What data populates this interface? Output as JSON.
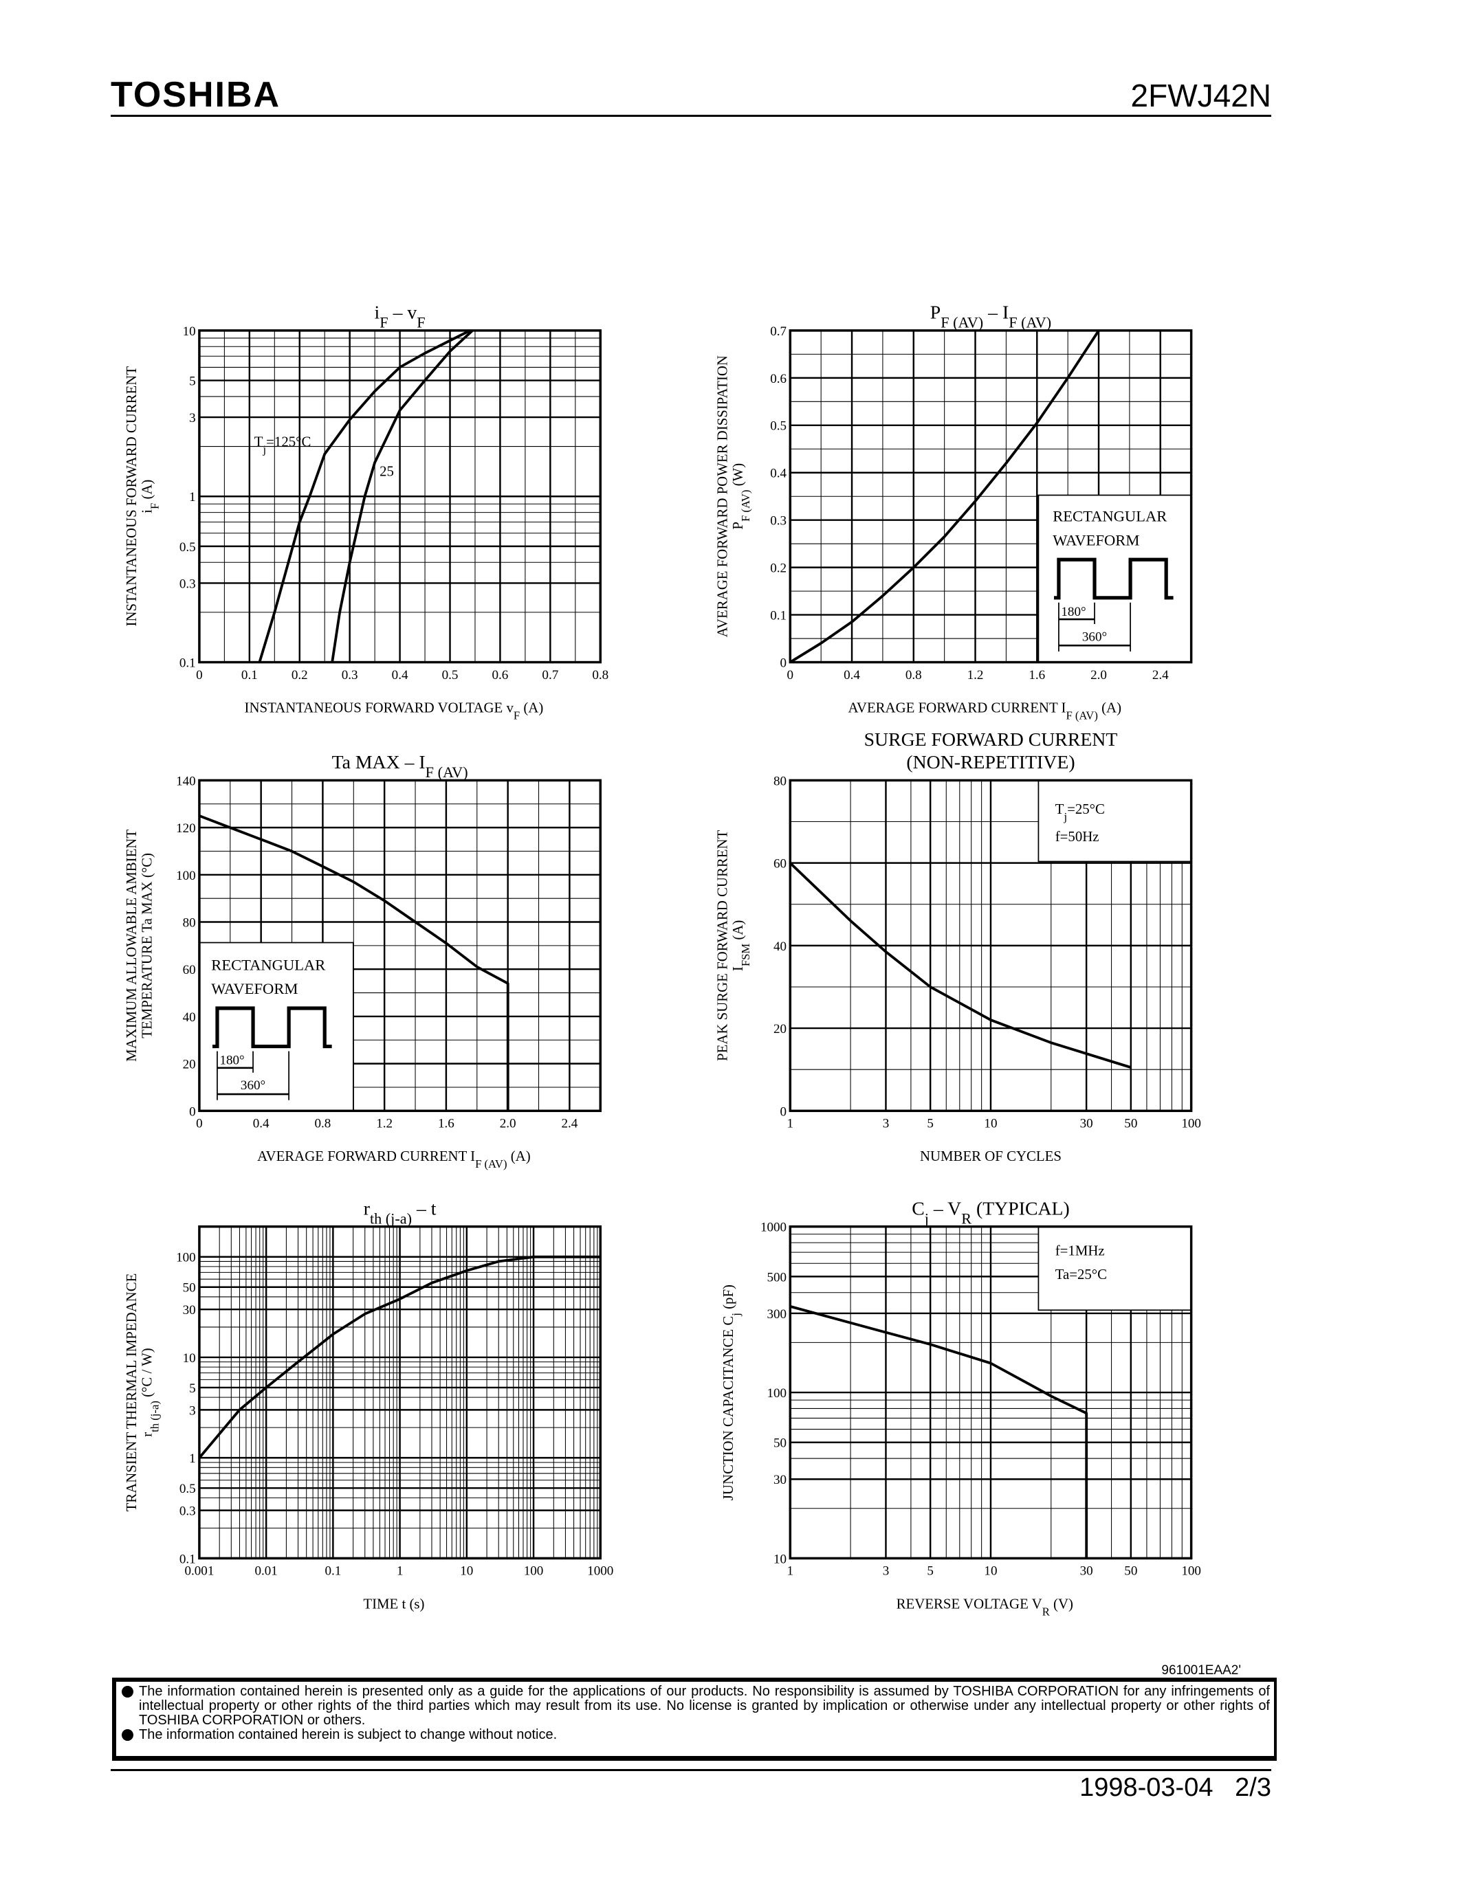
{
  "header": {
    "logo": "TOSHIBA",
    "part_number": "2FWJ42N"
  },
  "footer": {
    "doc_code": "961001EAA2'",
    "disclaimer": [
      "The information contained herein is presented only as a guide for the applications of our products. No responsibility is assumed by TOSHIBA CORPORATION for any infringements of intellectual property or other rights of the third parties which may result from its use. No license is granted by implication or otherwise under any intellectual property or other rights of TOSHIBA CORPORATION or others.",
      "The information contained herein is subject to change without notice."
    ],
    "date": "1998-03-04",
    "page": "2/3"
  },
  "chart_data": [
    {
      "type": "line",
      "title": [
        [
          "i",
          ""
        ],
        [
          "F",
          "sub"
        ],
        [
          "  –  v",
          ""
        ],
        [
          "F",
          "sub"
        ]
      ],
      "xlabel": [
        [
          "INSTANTANEOUS FORWARD VOLTAGE   v",
          ""
        ],
        [
          "F",
          "sub"
        ],
        [
          "   (A)",
          ""
        ]
      ],
      "ylabel": [
        [
          [
            "INSTANTANEOUS FORWARD CURRENT",
            ""
          ]
        ],
        [
          [
            "i",
            ""
          ],
          [
            "F",
            "sub"
          ],
          [
            "   (A)",
            ""
          ]
        ]
      ],
      "x_scale": "linear",
      "xlim": [
        0,
        0.8
      ],
      "x_ticks": [
        "0",
        "0.1",
        "0.2",
        "0.3",
        "0.4",
        "0.5",
        "0.6",
        "0.7",
        "0.8"
      ],
      "y_scale": "log",
      "ylim": [
        0.1,
        10
      ],
      "y_ticks": [
        "0.1",
        "0.3",
        "0.5",
        "1",
        "3",
        "5",
        "10"
      ],
      "grid": true,
      "series": [
        {
          "name": "Tj=125°C",
          "points": [
            [
              0.12,
              0.1
            ],
            [
              0.15,
              0.2
            ],
            [
              0.2,
              0.7
            ],
            [
              0.22,
              1
            ],
            [
              0.25,
              1.8
            ],
            [
              0.3,
              2.9
            ],
            [
              0.35,
              4.3
            ],
            [
              0.4,
              6
            ],
            [
              0.45,
              7.3
            ],
            [
              0.5,
              8.7
            ],
            [
              0.54,
              10
            ]
          ]
        },
        {
          "name": "25",
          "points": [
            [
              0.265,
              0.1
            ],
            [
              0.28,
              0.2
            ],
            [
              0.3,
              0.4
            ],
            [
              0.33,
              1
            ],
            [
              0.35,
              1.6
            ],
            [
              0.4,
              3.3
            ],
            [
              0.45,
              5
            ],
            [
              0.5,
              7.5
            ],
            [
              0.545,
              10
            ]
          ]
        }
      ],
      "annotations": [
        [
          [
            "T",
            ""
          ],
          [
            "j",
            "sub"
          ],
          [
            "=125°C",
            ""
          ]
        ],
        [
          [
            "25",
            ""
          ]
        ]
      ]
    },
    {
      "type": "line",
      "title": [
        [
          "P",
          ""
        ],
        [
          "F (AV)",
          "sub"
        ],
        [
          "  –  I",
          ""
        ],
        [
          "F (AV)",
          "sub"
        ]
      ],
      "xlabel": [
        [
          "AVERAGE FORWARD CURRENT   I",
          ""
        ],
        [
          "F (AV)",
          "sub"
        ],
        [
          "   (A)",
          ""
        ]
      ],
      "ylabel": [
        [
          [
            "AVERAGE FORWARD POWER DISSIPATION",
            ""
          ]
        ],
        [
          [
            "P",
            ""
          ],
          [
            "F (AV)",
            "sub"
          ],
          [
            "   (W)",
            ""
          ]
        ]
      ],
      "x_scale": "linear",
      "xlim": [
        0,
        2.6
      ],
      "x_ticks": [
        "0",
        "0.4",
        "0.8",
        "1.2",
        "1.6",
        "2.0",
        "2.4"
      ],
      "y_scale": "linear",
      "ylim": [
        0,
        0.7
      ],
      "y_ticks": [
        "0",
        "0.1",
        "0.2",
        "0.3",
        "0.4",
        "0.5",
        "0.6",
        "0.7"
      ],
      "grid": true,
      "series": [
        {
          "points": [
            [
              0,
              0
            ],
            [
              0.2,
              0.04
            ],
            [
              0.4,
              0.085
            ],
            [
              0.6,
              0.14
            ],
            [
              0.8,
              0.2
            ],
            [
              1.0,
              0.265
            ],
            [
              1.2,
              0.34
            ],
            [
              1.4,
              0.42
            ],
            [
              1.6,
              0.505
            ],
            [
              1.8,
              0.6
            ],
            [
              2.0,
              0.7
            ]
          ]
        }
      ],
      "inset": {
        "lines": [
          "RECTANGULAR",
          "WAVEFORM"
        ],
        "angles": [
          "180°",
          "360°"
        ]
      }
    },
    {
      "type": "line",
      "title": [
        [
          "Ta MAX  –  I",
          ""
        ],
        [
          "F (AV)",
          "sub"
        ]
      ],
      "xlabel": [
        [
          "AVERAGE FORWARD CURRENT   I",
          ""
        ],
        [
          "F (AV)",
          "sub"
        ],
        [
          "   (A)",
          ""
        ]
      ],
      "ylabel": [
        [
          [
            "MAXIMUM ALLOWABLE AMBIENT",
            ""
          ]
        ],
        [
          [
            "TEMPERATURE   Ta MAX   (°C)",
            ""
          ]
        ]
      ],
      "x_scale": "linear",
      "xlim": [
        0,
        2.6
      ],
      "x_ticks": [
        "0",
        "0.4",
        "0.8",
        "1.2",
        "1.6",
        "2.0",
        "2.4"
      ],
      "y_scale": "linear",
      "ylim": [
        0,
        140
      ],
      "y_ticks": [
        "0",
        "20",
        "40",
        "60",
        "80",
        "100",
        "120",
        "140"
      ],
      "grid": true,
      "series": [
        {
          "points": [
            [
              0,
              125
            ],
            [
              0.2,
              120
            ],
            [
              0.4,
              115
            ],
            [
              0.6,
              110
            ],
            [
              0.8,
              103.5
            ],
            [
              1.0,
              97
            ],
            [
              1.2,
              89
            ],
            [
              1.4,
              80
            ],
            [
              1.6,
              71
            ],
            [
              1.8,
              61
            ],
            [
              2.0,
              54
            ],
            [
              2.0,
              0
            ]
          ]
        }
      ],
      "inset": {
        "lines": [
          "RECTANGULAR",
          "WAVEFORM"
        ],
        "angles": [
          "180°",
          "360°"
        ]
      }
    },
    {
      "type": "line",
      "title_lines": [
        "SURGE FORWARD CURRENT",
        "(NON-REPETITIVE)"
      ],
      "xlabel": [
        [
          "NUMBER OF CYCLES",
          ""
        ]
      ],
      "ylabel": [
        [
          [
            "PEAK SURGE FORWARD CURRENT",
            ""
          ]
        ],
        [
          [
            "I",
            ""
          ],
          [
            "FSM",
            "sub"
          ],
          [
            "   (A)",
            ""
          ]
        ]
      ],
      "x_scale": "log",
      "xlim": [
        1,
        100
      ],
      "x_ticks": [
        "1",
        "3",
        "5",
        "10",
        "30",
        "50",
        "100"
      ],
      "y_scale": "linear",
      "ylim": [
        0,
        80
      ],
      "y_ticks": [
        "0",
        "20",
        "40",
        "60",
        "80"
      ],
      "grid": true,
      "series": [
        {
          "points": [
            [
              1,
              60
            ],
            [
              2,
              46
            ],
            [
              3,
              38.5
            ],
            [
              5,
              30
            ],
            [
              10,
              22
            ],
            [
              20,
              16.5
            ],
            [
              50,
              10.5
            ]
          ]
        }
      ],
      "annotations": [
        [
          [
            "T",
            ""
          ],
          [
            "j",
            "sub"
          ],
          [
            "=25°C",
            ""
          ]
        ],
        [
          [
            "f=50Hz",
            ""
          ]
        ]
      ]
    },
    {
      "type": "line",
      "title": [
        [
          "r",
          ""
        ],
        [
          "th (j-a)",
          "sub"
        ],
        [
          "  –  t",
          ""
        ]
      ],
      "xlabel": [
        [
          "TIME    t    (s)",
          ""
        ]
      ],
      "ylabel": [
        [
          [
            "TRANSIENT THERMAL IMPEDANCE",
            ""
          ]
        ],
        [
          [
            "r",
            ""
          ],
          [
            "th (j-a)",
            "sub"
          ],
          [
            "   (°C / W)",
            ""
          ]
        ]
      ],
      "x_scale": "log",
      "xlim": [
        0.001,
        1000
      ],
      "x_ticks": [
        "0.001",
        "0.01",
        "0.1",
        "1",
        "10",
        "100",
        "1000"
      ],
      "y_scale": "log",
      "ylim": [
        0.1,
        200
      ],
      "y_ticks": [
        "0.1",
        "0.3",
        "0.5",
        "1",
        "3",
        "5",
        "10",
        "30",
        "50",
        "100"
      ],
      "grid": true,
      "series": [
        {
          "points": [
            [
              0.001,
              1
            ],
            [
              0.004,
              3
            ],
            [
              0.01,
              5
            ],
            [
              0.03,
              9
            ],
            [
              0.1,
              17
            ],
            [
              0.3,
              27
            ],
            [
              1,
              38
            ],
            [
              3,
              55
            ],
            [
              10,
              73
            ],
            [
              30,
              90
            ],
            [
              100,
              100
            ],
            [
              1000,
              100
            ]
          ]
        }
      ]
    },
    {
      "type": "line",
      "title": [
        [
          "C",
          ""
        ],
        [
          "j",
          "sub"
        ],
        [
          "  –  V",
          ""
        ],
        [
          "R",
          "sub"
        ],
        [
          "          (TYPICAL)",
          ""
        ]
      ],
      "xlabel": [
        [
          "REVERSE VOLTAGE   V",
          ""
        ],
        [
          "R",
          "sub"
        ],
        [
          "   (V)",
          ""
        ]
      ],
      "ylabel": [
        [
          [
            "JUNCTION CAPACITANCE    C",
            ""
          ],
          [
            "j",
            "sub"
          ],
          [
            "    (pF)",
            ""
          ]
        ]
      ],
      "x_scale": "log",
      "xlim": [
        1,
        100
      ],
      "x_ticks": [
        "1",
        "3",
        "5",
        "10",
        "30",
        "50",
        "100"
      ],
      "y_scale": "log",
      "ylim": [
        10,
        1000
      ],
      "y_ticks": [
        "10",
        "30",
        "50",
        "100",
        "300",
        "500",
        "1000"
      ],
      "grid": true,
      "series": [
        {
          "points": [
            [
              1,
              330
            ],
            [
              3,
              230
            ],
            [
              5,
              195
            ],
            [
              10,
              150
            ],
            [
              15,
              115
            ],
            [
              20,
              95
            ],
            [
              30,
              75
            ],
            [
              30,
              10
            ]
          ]
        }
      ],
      "annotations": [
        [
          [
            "f=1MHz",
            ""
          ]
        ],
        [
          [
            "Ta=25°C",
            ""
          ]
        ]
      ]
    }
  ]
}
